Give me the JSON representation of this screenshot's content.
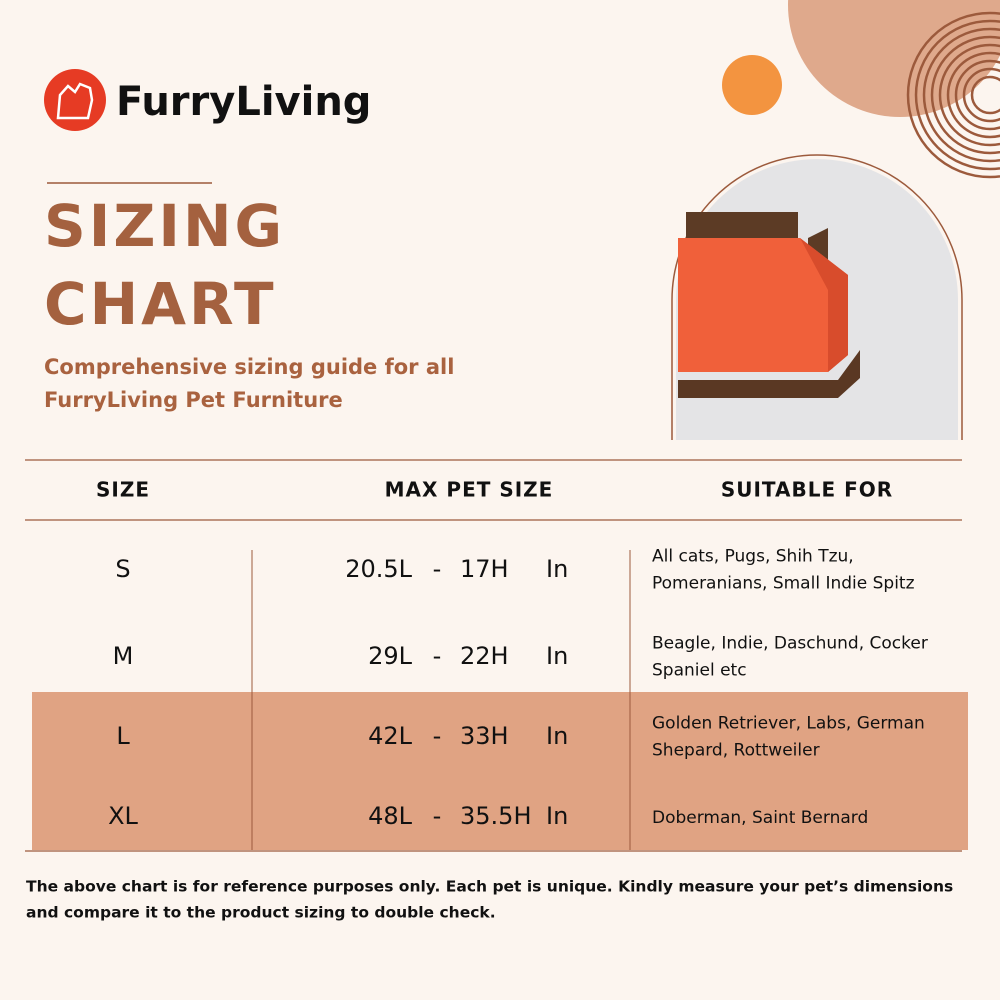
{
  "brand": "FurryLiving",
  "title": [
    "SIZING",
    "CHART"
  ],
  "subtitle": [
    "Comprehensive sizing guide for all",
    "FurryLiving Pet Furniture"
  ],
  "table": {
    "headers": [
      "SIZE",
      "MAX PET SIZE",
      "SUITABLE FOR"
    ],
    "rows": [
      {
        "size": "S",
        "length": "20.5L",
        "sep": "-",
        "height": "17H",
        "unit": "In",
        "suitable_for": [
          "All cats, Pugs, Shih Tzu,",
          "Pomeranians, Small Indie Spitz"
        ]
      },
      {
        "size": "M",
        "length": "29L",
        "sep": "-",
        "height": "22H",
        "unit": "In",
        "suitable_for": [
          "Beagle, Indie, Daschund, Cocker",
          "Spaniel etc"
        ]
      },
      {
        "size": "L",
        "length": "42L",
        "sep": "-",
        "height": "33H",
        "unit": "In",
        "suitable_for": [
          "Golden Retriever, Labs, German",
          "Shepard, Rottweiler"
        ]
      },
      {
        "size": "XL",
        "length": "48L",
        "sep": "-",
        "height": "35.5H",
        "unit": "In",
        "suitable_for": [
          "Doberman, Saint Bernard"
        ]
      }
    ]
  },
  "footnote": [
    "The above chart is for reference purposes only. Each pet is unique. Kindly measure your pet’s dimensions",
    "and compare it to the product sizing to double check."
  ]
}
